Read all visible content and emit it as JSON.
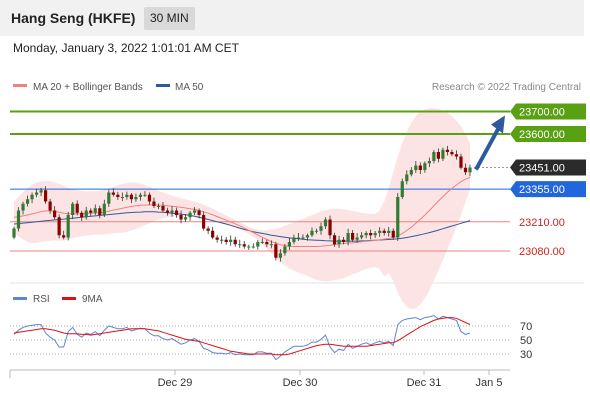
{
  "header": {
    "instrument": "Hang Seng (HKFE)",
    "timeframe": "30 MIN",
    "datetime": "Monday, January 3, 2022 1:01:01 AM CET"
  },
  "legend": {
    "ma20_label": "MA 20 + Bollinger Bands",
    "ma50_label": "MA 50",
    "copyright": "Research © 2022 Trading Central",
    "rsi_label": "RSI",
    "ma9_label": "9MA"
  },
  "colors": {
    "ma20": "#f08080",
    "ma50": "#2e5a9b",
    "bollinger_fill": "#fde4e4",
    "candle": "#2e7d32",
    "target_line": "#5aa013",
    "pivot_line": "#2266dd",
    "support_line": "#f08080",
    "support_text": "#cc2222",
    "last_price_bg": "#2b2b2b",
    "arrow": "#2e5a9b",
    "rsi": "#5c85d6",
    "rsi_ma": "#dd1111"
  },
  "chart_data": {
    "type": "candlestick",
    "price_range": [
      22960,
      23760
    ],
    "price_levels": [
      {
        "value": 23700,
        "label": "23700.00",
        "kind": "target"
      },
      {
        "value": 23600,
        "label": "23600.00",
        "kind": "target"
      },
      {
        "value": 23451,
        "label": "23451.00",
        "kind": "last"
      },
      {
        "value": 23355,
        "label": "23355.00",
        "kind": "pivot"
      },
      {
        "value": 23210,
        "label": "23210.00",
        "kind": "support"
      },
      {
        "value": 23080,
        "label": "23080.00",
        "kind": "support"
      }
    ],
    "close": [
      23180,
      23260,
      23290,
      23310,
      23330,
      23340,
      23350,
      23300,
      23260,
      23230,
      23150,
      23140,
      23240,
      23290,
      23250,
      23230,
      23260,
      23250,
      23270,
      23240,
      23290,
      23340,
      23330,
      23320,
      23320,
      23330,
      23310,
      23320,
      23330,
      23330,
      23300,
      23280,
      23280,
      23260,
      23250,
      23260,
      23240,
      23220,
      23230,
      23250,
      23260,
      23240,
      23180,
      23170,
      23140,
      23130,
      23130,
      23120,
      23130,
      23110,
      23110,
      23100,
      23100,
      23100,
      23120,
      23120,
      23110,
      23110,
      23050,
      23070,
      23100,
      23120,
      23140,
      23140,
      23140,
      23150,
      23170,
      23170,
      23190,
      23220,
      23150,
      23110,
      23130,
      23120,
      23160,
      23130,
      23140,
      23150,
      23160,
      23150,
      23160,
      23170,
      23160,
      23170,
      23140,
      23320,
      23390,
      23420,
      23440,
      23460,
      23440,
      23470,
      23480,
      23520,
      23490,
      23530,
      23520,
      23510,
      23500,
      23450,
      23430,
      23451
    ],
    "open": [
      23140,
      23180,
      23260,
      23290,
      23310,
      23330,
      23340,
      23350,
      23300,
      23260,
      23230,
      23150,
      23140,
      23240,
      23290,
      23250,
      23230,
      23260,
      23250,
      23270,
      23240,
      23290,
      23340,
      23330,
      23320,
      23320,
      23330,
      23310,
      23320,
      23330,
      23330,
      23300,
      23280,
      23280,
      23260,
      23250,
      23260,
      23240,
      23220,
      23230,
      23250,
      23260,
      23240,
      23180,
      23170,
      23140,
      23130,
      23130,
      23120,
      23130,
      23110,
      23110,
      23100,
      23100,
      23100,
      23120,
      23120,
      23110,
      23110,
      23050,
      23070,
      23100,
      23120,
      23140,
      23140,
      23140,
      23150,
      23170,
      23170,
      23190,
      23220,
      23150,
      23110,
      23130,
      23120,
      23160,
      23130,
      23140,
      23150,
      23160,
      23150,
      23160,
      23170,
      23160,
      23170,
      23140,
      23320,
      23390,
      23420,
      23440,
      23460,
      23440,
      23470,
      23480,
      23520,
      23490,
      23530,
      23520,
      23510,
      23500,
      23450,
      23430
    ],
    "ma20": [
      23230,
      23232,
      23236,
      23240,
      23245,
      23250,
      23255,
      23258,
      23258,
      23256,
      23252,
      23248,
      23246,
      23246,
      23246,
      23246,
      23247,
      23248,
      23249,
      23250,
      23253,
      23257,
      23262,
      23266,
      23270,
      23274,
      23278,
      23281,
      23283,
      23284,
      23285,
      23285,
      23284,
      23283,
      23281,
      23279,
      23277,
      23274,
      23271,
      23268,
      23265,
      23260,
      23254,
      23248,
      23241,
      23233,
      23225,
      23217,
      23209,
      23201,
      23192,
      23182,
      23172,
      23162,
      23151,
      23141,
      23131,
      23122,
      23114,
      23108,
      23104,
      23101,
      23100,
      23100,
      23100,
      23100,
      23100,
      23100,
      23101,
      23103,
      23106,
      23109,
      23111,
      23113,
      23115,
      23117,
      23119,
      23121,
      23123,
      23125,
      23127,
      23130,
      23133,
      23136,
      23139,
      23147,
      23158,
      23171,
      23186,
      23203,
      23221,
      23240,
      23260,
      23281,
      23302,
      23322,
      23341,
      23358,
      23374,
      23388,
      23399,
      23407
    ],
    "ma50": [
      23200,
      23202,
      23204,
      23206,
      23208,
      23210,
      23212,
      23214,
      23216,
      23218,
      23220,
      23222,
      23224,
      23226,
      23228,
      23230,
      23232,
      23234,
      23236,
      23238,
      23240,
      23242,
      23244,
      23246,
      23248,
      23250,
      23251,
      23252,
      23253,
      23254,
      23254,
      23254,
      23253,
      23252,
      23250,
      23248,
      23246,
      23244,
      23241,
      23238,
      23234,
      23230,
      23225,
      23220,
      23215,
      23210,
      23205,
      23200,
      23194,
      23188,
      23182,
      23176,
      23171,
      23166,
      23162,
      23158,
      23154,
      23150,
      23147,
      23144,
      23141,
      23138,
      23136,
      23134,
      23132,
      23130,
      23129,
      23128,
      23127,
      23126,
      23125,
      23124,
      23124,
      23124,
      23124,
      23124,
      23124,
      23125,
      23126,
      23127,
      23128,
      23129,
      23130,
      23131,
      23132,
      23134,
      23137,
      23140,
      23144,
      23148,
      23152,
      23157,
      23162,
      23167,
      23173,
      23179,
      23185,
      23191,
      23197,
      23203,
      23209,
      23215
    ],
    "bb_upper": [
      23300,
      23320,
      23340,
      23360,
      23375,
      23385,
      23390,
      23392,
      23390,
      23385,
      23378,
      23370,
      23362,
      23355,
      23350,
      23347,
      23345,
      23345,
      23346,
      23348,
      23352,
      23358,
      23365,
      23372,
      23378,
      23383,
      23385,
      23384,
      23380,
      23374,
      23366,
      23357,
      23348,
      23340,
      23332,
      23326,
      23320,
      23315,
      23310,
      23305,
      23300,
      23294,
      23286,
      23277,
      23268,
      23258,
      23248,
      23238,
      23228,
      23218,
      23208,
      23198,
      23188,
      23180,
      23175,
      23172,
      23172,
      23175,
      23180,
      23186,
      23193,
      23200,
      23208,
      23216,
      23224,
      23232,
      23240,
      23248,
      23256,
      23262,
      23266,
      23268,
      23268,
      23266,
      23262,
      23258,
      23254,
      23250,
      23247,
      23245,
      23245,
      23260,
      23300,
      23360,
      23430,
      23500,
      23560,
      23610,
      23650,
      23680,
      23700,
      23710,
      23715,
      23715,
      23712,
      23705,
      23695,
      23680,
      23660,
      23635,
      23600,
      23560
    ],
    "bb_lower": [
      23160,
      23144,
      23132,
      23120,
      23115,
      23115,
      23120,
      23124,
      23126,
      23127,
      23126,
      23126,
      23130,
      23137,
      23142,
      23145,
      23149,
      23151,
      23152,
      23152,
      23154,
      23156,
      23159,
      23160,
      23162,
      23165,
      23171,
      23178,
      23186,
      23194,
      23204,
      23213,
      23220,
      23226,
      23230,
      23232,
      23234,
      23233,
      23232,
      23231,
      23230,
      23226,
      23222,
      23219,
      23214,
      23208,
      23202,
      23196,
      23190,
      23184,
      23176,
      23166,
      23156,
      23144,
      23127,
      23110,
      23090,
      23069,
      23048,
      23030,
      23015,
      23002,
      22992,
      22984,
      22976,
      22968,
      22960,
      22952,
      22946,
      22944,
      22946,
      22950,
      22954,
      22960,
      22968,
      22976,
      22984,
      22992,
      23000,
      23005,
      23009,
      23000,
      22966,
      22982,
      22948,
      22894,
      22856,
      22832,
      22822,
      22826,
      22842,
      22870,
      22905,
      22947,
      22992,
      23039,
      23087,
      23136,
      23188,
      23241,
      23298,
      23354
    ],
    "x_tick_labels": [
      "Dec 29",
      "Dec 30",
      "Dec 31",
      "Jan 5"
    ],
    "rsi": {
      "range": [
        10,
        90
      ],
      "levels": [
        70,
        50,
        30
      ],
      "tick_labels": [
        "70",
        "50",
        "30"
      ],
      "rsi": [
        58,
        64,
        68,
        70,
        71,
        72,
        72,
        60,
        54,
        50,
        40,
        40,
        62,
        68,
        58,
        54,
        60,
        58,
        62,
        56,
        64,
        70,
        68,
        66,
        66,
        68,
        63,
        65,
        67,
        66,
        60,
        56,
        56,
        52,
        50,
        52,
        48,
        44,
        46,
        50,
        52,
        48,
        38,
        36,
        32,
        31,
        31,
        30,
        32,
        29,
        30,
        29,
        29,
        29,
        33,
        33,
        31,
        31,
        22,
        27,
        33,
        37,
        41,
        41,
        41,
        43,
        47,
        47,
        51,
        57,
        40,
        32,
        37,
        35,
        44,
        38,
        41,
        44,
        46,
        43,
        46,
        48,
        46,
        48,
        42,
        72,
        78,
        80,
        81,
        82,
        79,
        82,
        83,
        85,
        80,
        84,
        82,
        80,
        78,
        62,
        58,
        60
      ],
      "ma9": [
        60,
        61,
        62,
        63,
        64,
        65,
        66,
        66,
        65,
        64,
        62,
        60,
        59,
        59,
        59,
        58,
        58,
        57,
        58,
        59,
        60,
        61,
        62,
        63,
        64,
        65,
        66,
        66,
        66,
        66,
        65,
        64,
        63,
        61,
        59,
        57,
        55,
        53,
        51,
        50,
        49,
        48,
        46,
        44,
        42,
        40,
        38,
        36,
        34,
        33,
        32,
        31,
        30,
        30,
        30,
        30,
        30,
        30,
        29,
        29,
        29,
        30,
        32,
        34,
        36,
        38,
        40,
        42,
        43,
        44,
        44,
        43,
        42,
        41,
        41,
        41,
        41,
        41,
        41,
        42,
        43,
        44,
        45,
        46,
        46,
        49,
        53,
        57,
        61,
        65,
        69,
        72,
        75,
        78,
        80,
        81,
        82,
        82,
        81,
        78,
        75,
        72
      ]
    }
  }
}
